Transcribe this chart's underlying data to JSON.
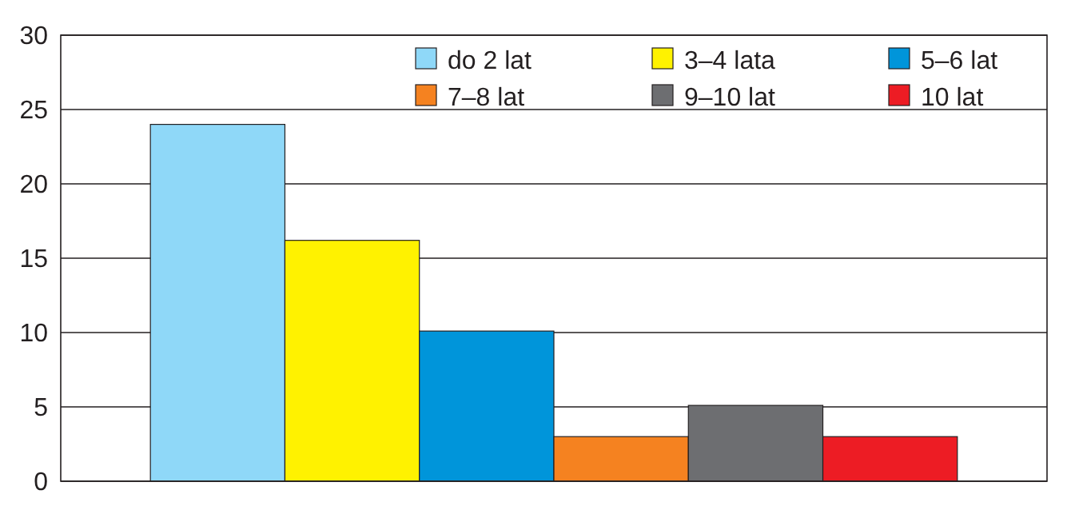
{
  "chart_data": {
    "type": "bar",
    "categories": [
      null
    ],
    "series": [
      {
        "name": "do 2 lat",
        "color": "#8fd8f8",
        "values": [
          24
        ]
      },
      {
        "name": "3–4 lata",
        "color": "#fff200",
        "values": [
          16.2
        ]
      },
      {
        "name": "5–6 lat",
        "color": "#0095da",
        "values": [
          10.1
        ]
      },
      {
        "name": "7–8 lat",
        "color": "#f58220",
        "values": [
          3
        ]
      },
      {
        "name": "9–10 lat",
        "color": "#6d6e71",
        "values": [
          5.1
        ]
      },
      {
        "name": "10 lat",
        "color": "#ed1c24",
        "values": [
          3
        ]
      }
    ],
    "ylim": [
      0,
      30
    ],
    "yticks": [
      0,
      5,
      10,
      15,
      20,
      25,
      30
    ],
    "grid": "y",
    "legend": "top right"
  }
}
